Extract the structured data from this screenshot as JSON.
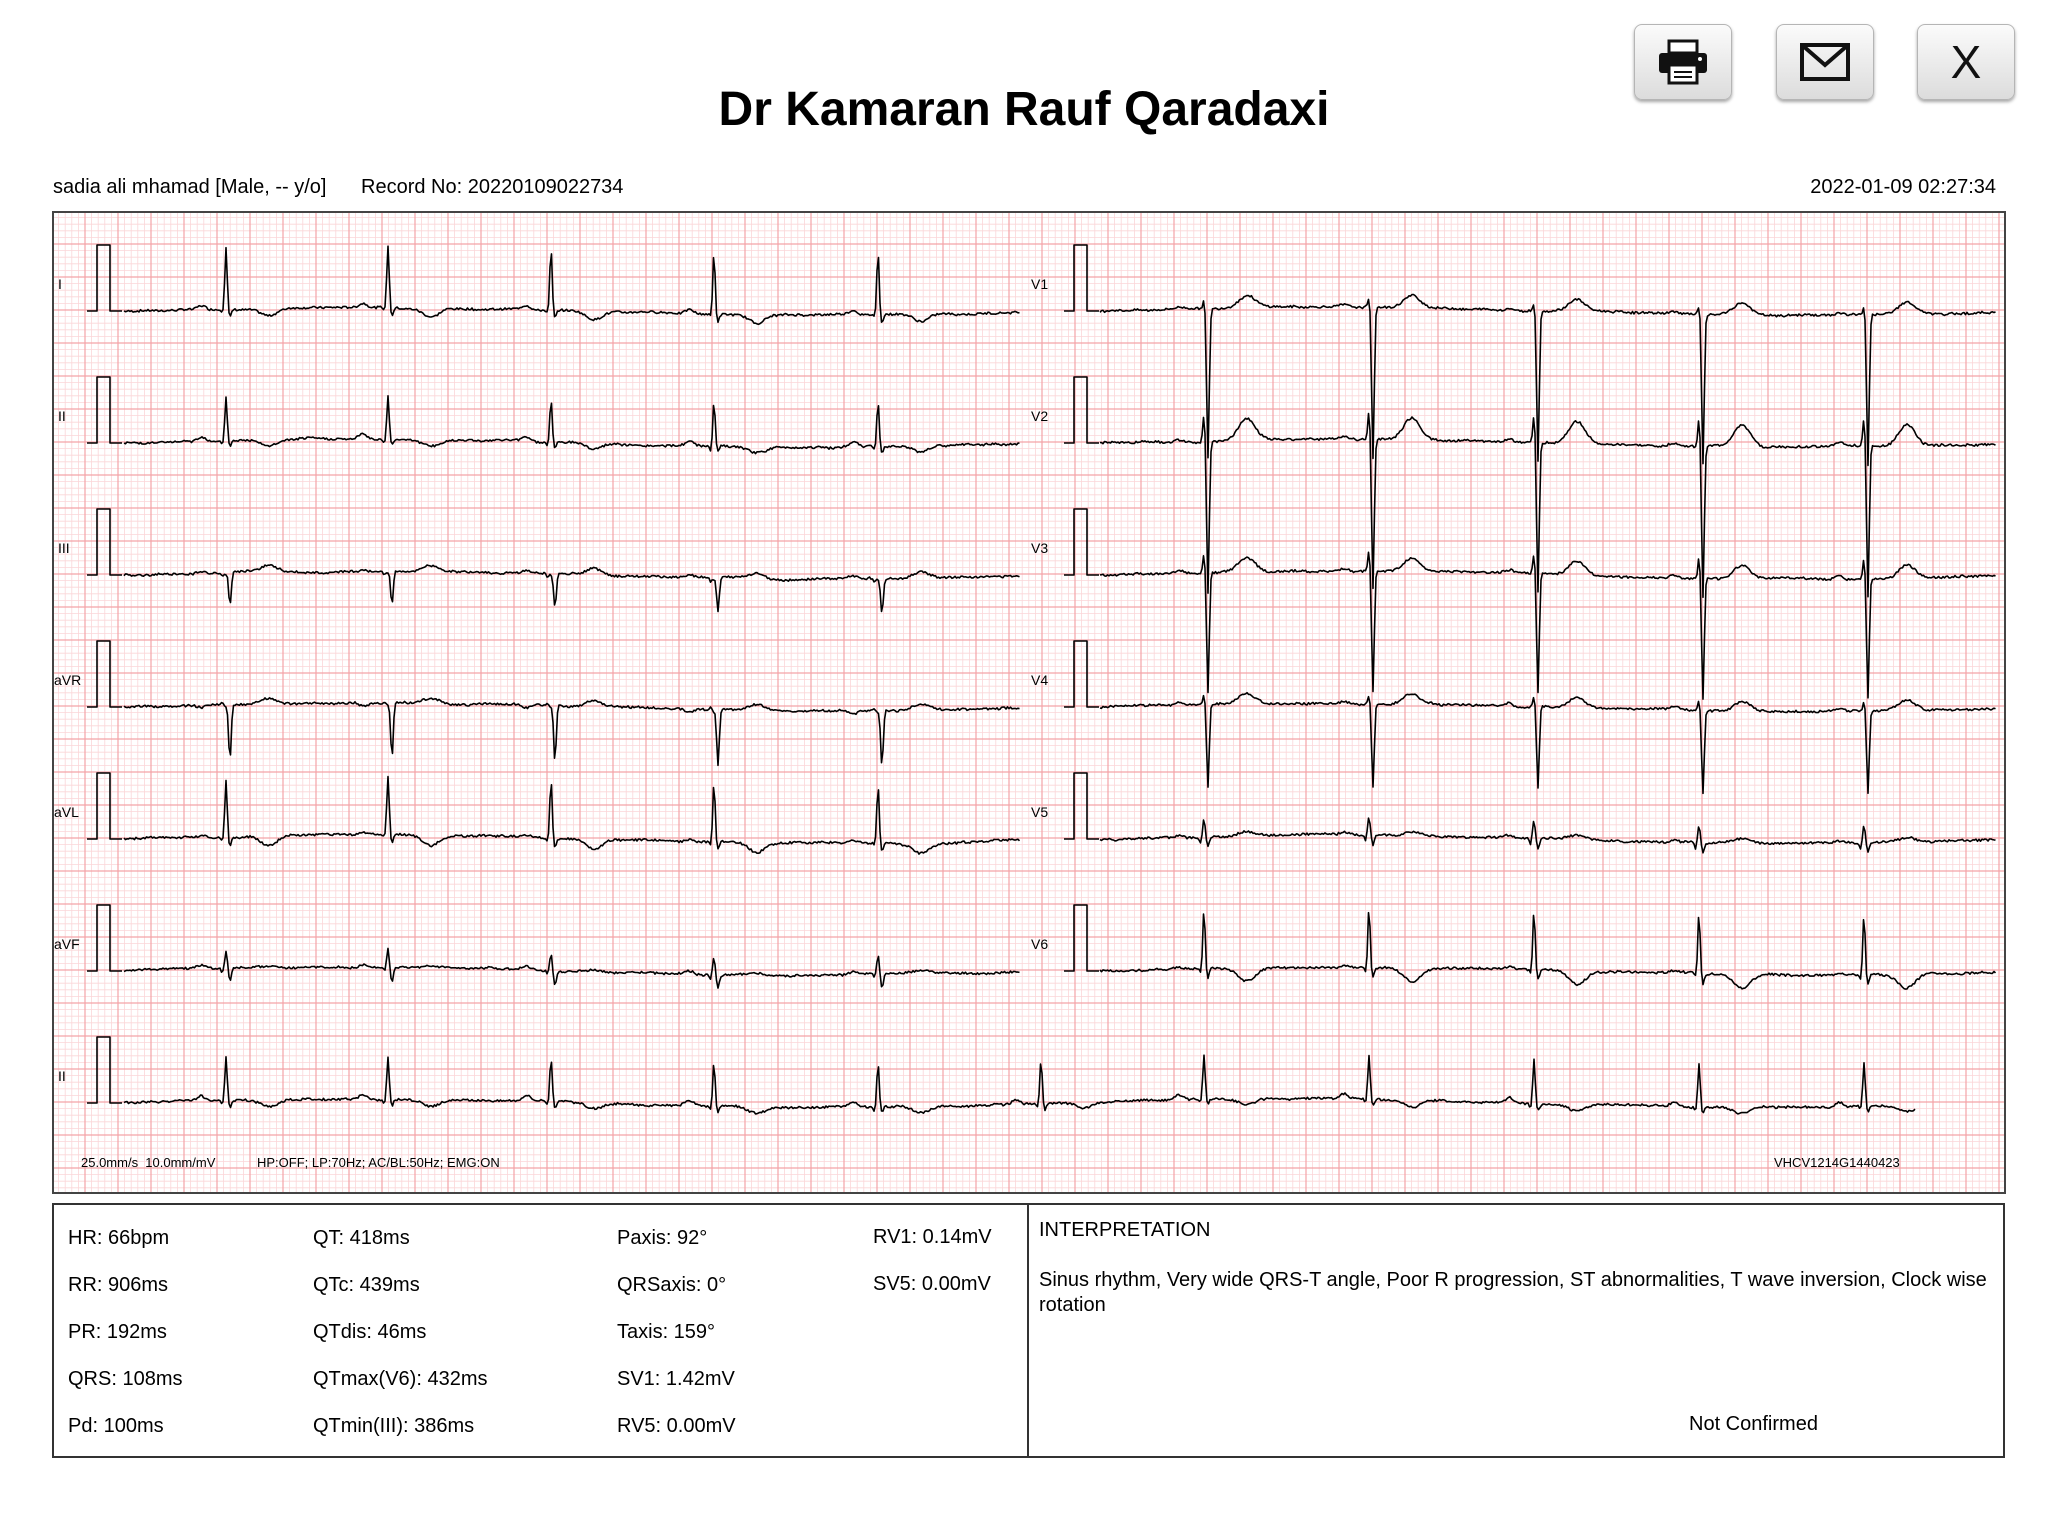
{
  "header": {
    "title": "Dr Kamaran Rauf Qaradaxi",
    "print_icon": "printer-icon",
    "email_icon": "envelope-icon",
    "close_label": "X"
  },
  "patient": {
    "name_line": "sadia ali mhamad [Male, -- y/o]",
    "record": "Record No: 20220109022734",
    "datetime": "2022-01-09 02:27:34"
  },
  "ecg": {
    "lead_labels_left": [
      "I",
      "II",
      "III",
      "aVR",
      "aVL",
      "aVF"
    ],
    "lead_labels_right": [
      "V1",
      "V2",
      "V3",
      "V4",
      "V5",
      "V6"
    ],
    "rhythm_lead": "II",
    "settings": "25.0mm/s  10.0mm/mV",
    "filters": "HP:OFF; LP:70Hz; AC/BL:50Hz; EMG:ON",
    "device_id": "VHCV1214G1440423",
    "grid_color": "#f3a3a8",
    "trace_color": "#000000"
  },
  "measurements": {
    "col1": [
      "HR: 66bpm",
      "RR: 906ms",
      "PR: 192ms",
      "QRS: 108ms",
      "Pd: 100ms"
    ],
    "col2": [
      "QT: 418ms",
      "QTc: 439ms",
      "QTdis: 46ms",
      "QTmax(V6): 432ms",
      "QTmin(III): 386ms"
    ],
    "col3": [
      "Paxis: 92°",
      "QRSaxis: 0°",
      "Taxis: 159°",
      "SV1: 1.42mV",
      "RV5: 0.00mV"
    ],
    "col4": [
      "RV1: 0.14mV",
      "SV5: 0.00mV"
    ]
  },
  "interpretation": {
    "title": "INTERPRETATION",
    "text": "Sinus rhythm, Very wide QRS-T angle, Poor R progression, ST abnormalities, T wave inversion, Clock wise rotation",
    "status": "Not Confirmed"
  }
}
